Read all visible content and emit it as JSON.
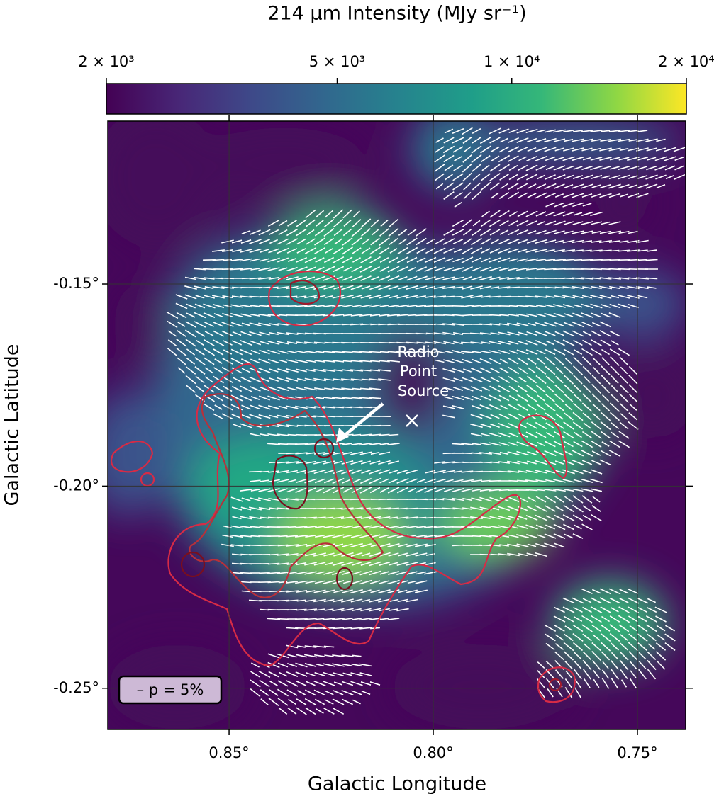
{
  "chart_data": {
    "type": "heatmap",
    "title": "214 μm Intensity (MJy sr⁻¹)",
    "colorbar": {
      "scale": "log",
      "colormap": "viridis",
      "lim": [
        2000,
        20000
      ],
      "ticks": [
        {
          "value": 2000,
          "label": "2 × 10³"
        },
        {
          "value": 5000,
          "label": "5 × 10³"
        },
        {
          "value": 10000,
          "label": "1 × 10⁴"
        },
        {
          "value": 20000,
          "label": "2 × 10⁴"
        }
      ]
    },
    "xlabel": "Galactic Longitude",
    "ylabel": "Galactic Latitude",
    "xlim": [
      0.8797,
      0.7382
    ],
    "ylim": [
      -0.2602,
      -0.1097
    ],
    "xticks": [
      {
        "value": 0.85,
        "label": "0.85°"
      },
      {
        "value": 0.8,
        "label": "0.80°"
      },
      {
        "value": 0.75,
        "label": "0.75°"
      }
    ],
    "yticks": [
      {
        "value": -0.15,
        "label": "-0.15°"
      },
      {
        "value": -0.2,
        "label": "-0.20°"
      },
      {
        "value": -0.25,
        "label": "-0.25°"
      }
    ],
    "grid": true,
    "annotation": [
      "Radio",
      "Point",
      "Source"
    ],
    "legend": "– p = 5%"
  }
}
